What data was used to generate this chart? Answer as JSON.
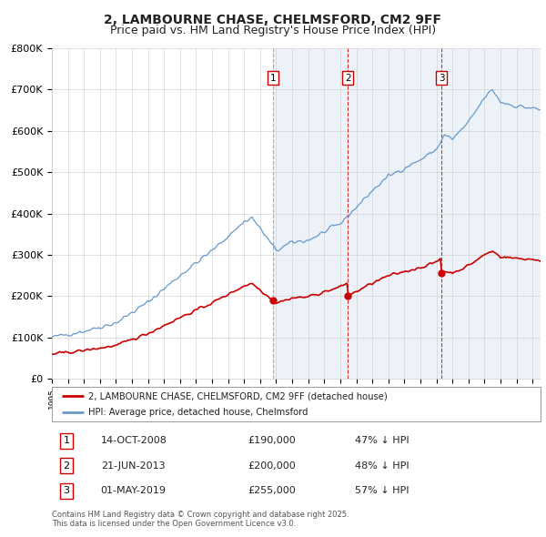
{
  "title": "2, LAMBOURNE CHASE, CHELMSFORD, CM2 9FF",
  "subtitle": "Price paid vs. HM Land Registry's House Price Index (HPI)",
  "ylim": [
    0,
    800000
  ],
  "yticks": [
    0,
    100000,
    200000,
    300000,
    400000,
    500000,
    600000,
    700000,
    800000
  ],
  "ytick_labels": [
    "£0",
    "£100K",
    "£200K",
    "£300K",
    "£400K",
    "£500K",
    "£600K",
    "£700K",
    "£800K"
  ],
  "background_color": "#ffffff",
  "plot_bg_color": "#ffffff",
  "grid_color": "#cccccc",
  "sale_color": "#cc0000",
  "hpi_color": "#6699cc",
  "hpi_fill_color": "#ddeeff",
  "purchase_dates_float": [
    2008.79,
    2013.47,
    2019.33
  ],
  "purchase_prices": [
    190000,
    200000,
    255000
  ],
  "purchase_labels": [
    "1",
    "2",
    "3"
  ],
  "table_data": [
    [
      "1",
      "14-OCT-2008",
      "£190,000",
      "47% ↓ HPI"
    ],
    [
      "2",
      "21-JUN-2013",
      "£200,000",
      "48% ↓ HPI"
    ],
    [
      "3",
      "01-MAY-2019",
      "£255,000",
      "57% ↓ HPI"
    ]
  ],
  "legend_entries": [
    "2, LAMBOURNE CHASE, CHELMSFORD, CM2 9FF (detached house)",
    "HPI: Average price, detached house, Chelmsford"
  ],
  "footer": "Contains HM Land Registry data © Crown copyright and database right 2025.\nThis data is licensed under the Open Government Licence v3.0.",
  "title_fontsize": 10,
  "subtitle_fontsize": 9,
  "tick_fontsize": 8,
  "x_start_year": 1995,
  "x_end_year": 2025
}
